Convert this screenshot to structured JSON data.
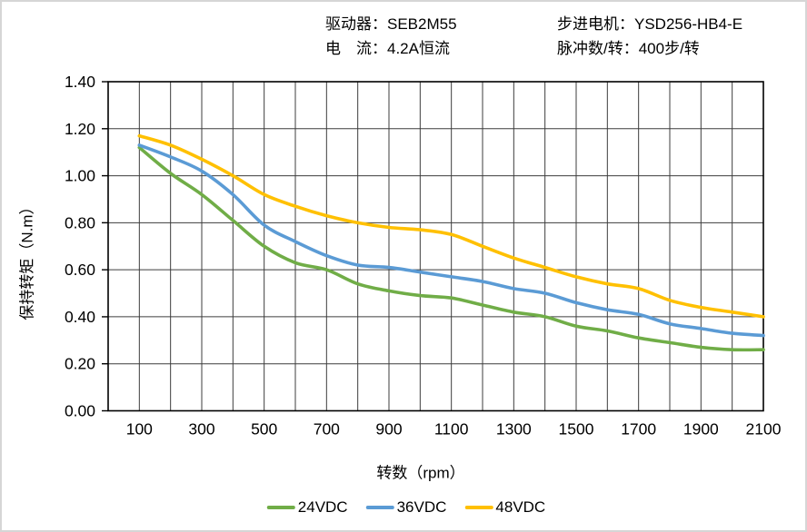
{
  "window": {
    "background": "#ffffff",
    "border_color": "#d6d6d6"
  },
  "header": {
    "driver": "驱动器：SEB2M55",
    "current": "电　流：4.2A恒流",
    "motor": "步进电机：YSD256-HB4-E",
    "pulses_per_rev": "脉冲数/转：400步/转"
  },
  "chart_data": {
    "type": "line",
    "title": "",
    "xlabel": "转数（rpm）",
    "ylabel": "保持转矩（N.m）",
    "xlim": [
      0,
      2100
    ],
    "ylim": [
      0,
      1.4
    ],
    "grid": true,
    "x_gridline_step": 100,
    "y_gridline_step": 0.2,
    "x_tick_values": [
      100,
      300,
      500,
      700,
      900,
      1100,
      1300,
      1500,
      1700,
      1900,
      2100
    ],
    "x_tick_labels": [
      "100",
      "300",
      "500",
      "700",
      "900",
      "1100",
      "1300",
      "1500",
      "1700",
      "1900",
      "2100"
    ],
    "y_tick_values": [
      0,
      0.2,
      0.4,
      0.6,
      0.8,
      1.0,
      1.2,
      1.4
    ],
    "y_tick_labels": [
      "0.00",
      "0.20",
      "0.40",
      "0.60",
      "0.80",
      "1.00",
      "1.20",
      "1.40"
    ],
    "legend_position": "bottom",
    "axis_color": "#000000",
    "grid_color": "#3d3d3d",
    "x": [
      100,
      200,
      300,
      400,
      500,
      600,
      700,
      800,
      900,
      1000,
      1100,
      1200,
      1300,
      1400,
      1500,
      1600,
      1700,
      1800,
      1900,
      2000,
      2100
    ],
    "series": [
      {
        "name": "24VDC",
        "color": "#70AD47",
        "values": [
          1.12,
          1.01,
          0.92,
          0.81,
          0.7,
          0.63,
          0.6,
          0.54,
          0.51,
          0.49,
          0.48,
          0.45,
          0.42,
          0.4,
          0.36,
          0.34,
          0.31,
          0.29,
          0.27,
          0.26,
          0.26
        ]
      },
      {
        "name": "36VDC",
        "color": "#5B9BD5",
        "values": [
          1.13,
          1.08,
          1.02,
          0.92,
          0.79,
          0.72,
          0.66,
          0.62,
          0.61,
          0.59,
          0.57,
          0.55,
          0.52,
          0.5,
          0.46,
          0.43,
          0.41,
          0.37,
          0.35,
          0.33,
          0.32
        ]
      },
      {
        "name": "48VDC",
        "color": "#FFC000",
        "values": [
          1.17,
          1.13,
          1.07,
          1.0,
          0.92,
          0.87,
          0.83,
          0.8,
          0.78,
          0.77,
          0.75,
          0.7,
          0.65,
          0.61,
          0.57,
          0.54,
          0.52,
          0.47,
          0.44,
          0.42,
          0.4
        ]
      }
    ]
  }
}
